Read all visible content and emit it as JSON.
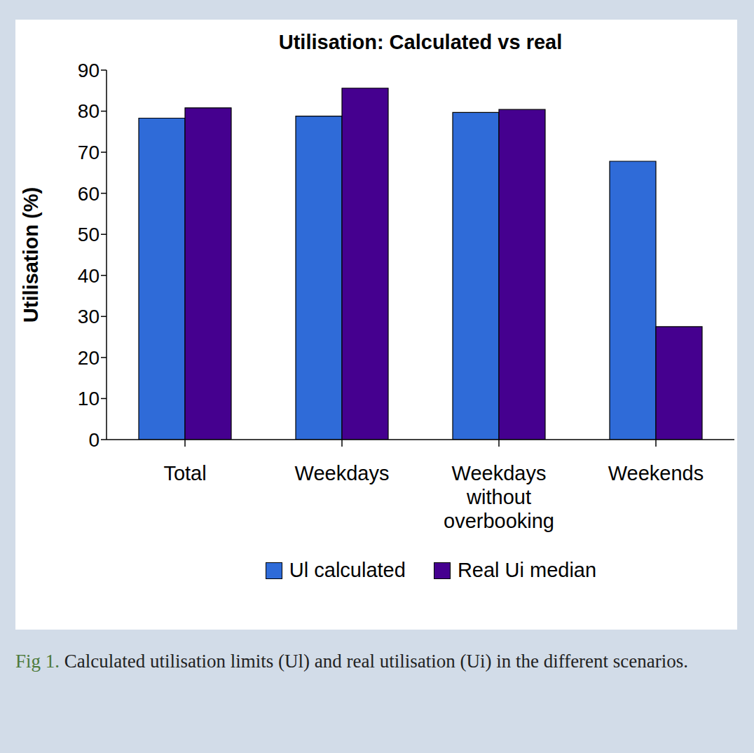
{
  "chart_data": {
    "type": "bar",
    "title": "Utilisation: Calculated vs real",
    "y_label": "Utilisation (%)",
    "categories": [
      "Total",
      "Weekdays",
      "Weekdays without overbooking",
      "Weekends"
    ],
    "series": [
      {
        "name": "Ul calculated",
        "color": "#2f6bd8",
        "values": [
          78.3,
          78.8,
          79.7,
          67.8
        ]
      },
      {
        "name": "Real Ui median",
        "color": "#45008f",
        "values": [
          80.8,
          85.6,
          80.4,
          27.5
        ]
      }
    ],
    "ylim": [
      0,
      90
    ],
    "yticks": [
      0,
      10,
      20,
      30,
      40,
      50,
      60,
      70,
      80,
      90
    ],
    "grid": false,
    "legend": "bottom",
    "caption_label": "Fig 1.",
    "caption": "Calculated utilisation limits (Ul) and real utilisation (Ui) in the different scenarios."
  }
}
